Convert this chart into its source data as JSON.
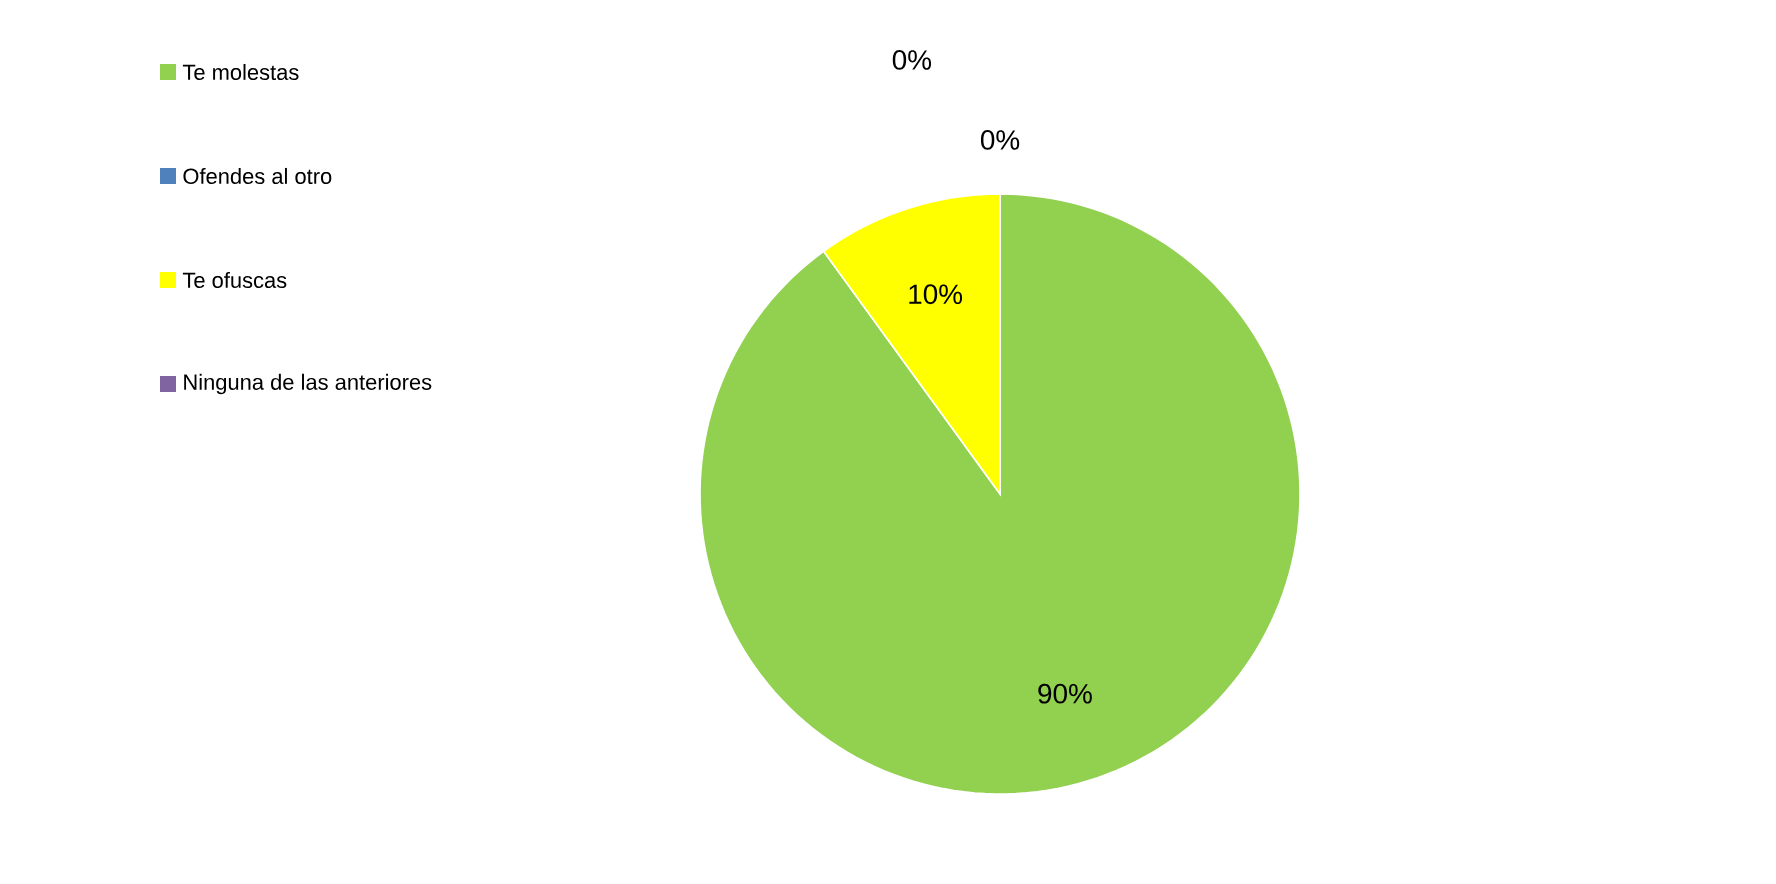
{
  "chart_data": {
    "type": "pie",
    "categories": [
      "Te molestas",
      "Ofendes al otro",
      "Te ofuscas",
      "Ninguna de las anteriores"
    ],
    "values": [
      90,
      0,
      10,
      0
    ],
    "colors": [
      "#92d050",
      "#4f81bd",
      "#ffff00",
      "#8064a2"
    ],
    "value_labels": [
      "90%",
      "0%",
      "10%",
      "0%"
    ],
    "legend": "top left"
  }
}
